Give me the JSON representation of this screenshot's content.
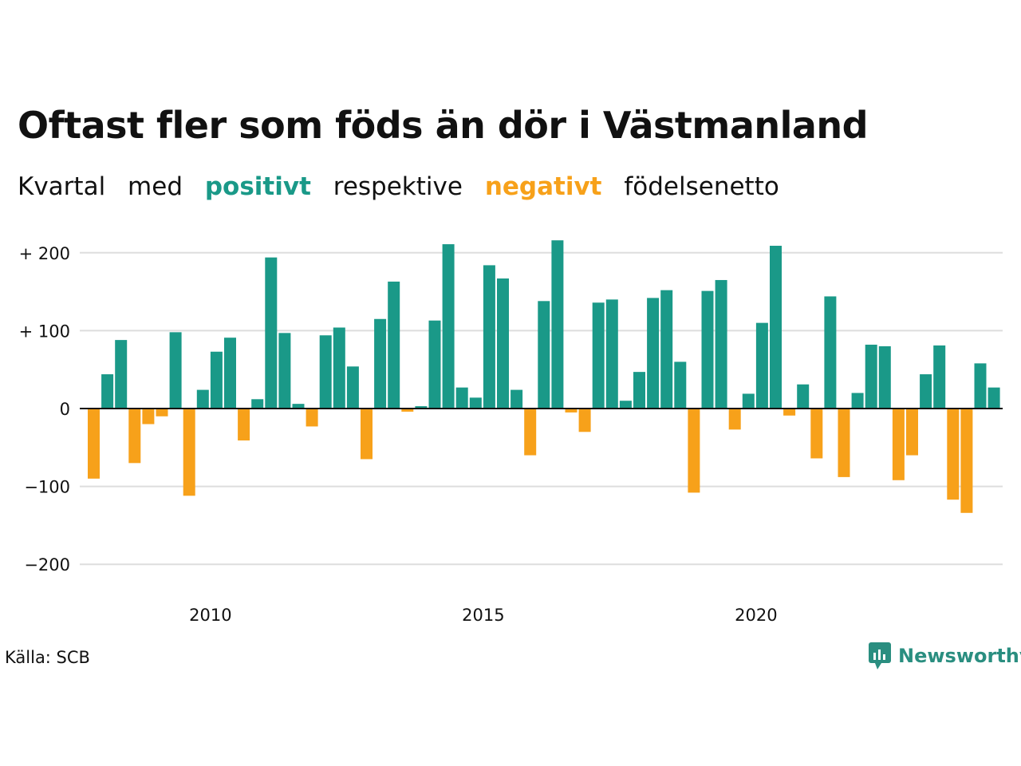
{
  "header": {
    "title": "Oftast fler som föds än dör i Västmanland",
    "subtitle": {
      "part1": "Kvartal",
      "part2": "med",
      "positive_word": "positivt",
      "part3": "respektive",
      "negative_word": "negativt",
      "part4": "födelsenetto"
    }
  },
  "footer": {
    "source": "Källa: SCB",
    "brand": "Newsworthy"
  },
  "colors": {
    "positive": "#1a9988",
    "negative": "#f7a11a",
    "grid": "#dddddd",
    "brand": "#2a8e80"
  },
  "chart_data": {
    "type": "bar",
    "title": "Oftast fler som föds än dör i Västmanland",
    "xlabel": "",
    "ylabel": "",
    "ylim": [
      -200,
      220
    ],
    "yticks": [
      {
        "value": 200,
        "label": "+ 200"
      },
      {
        "value": 100,
        "label": "+ 100"
      },
      {
        "value": 0,
        "label": "0"
      },
      {
        "value": -100,
        "label": "−100"
      },
      {
        "value": -200,
        "label": "−200"
      }
    ],
    "xticks": [
      {
        "value": 2010,
        "label": "2010"
      },
      {
        "value": 2015,
        "label": "2015"
      },
      {
        "value": 2020,
        "label": "2020"
      }
    ],
    "grid": true,
    "legend": "none",
    "start_year": 2007,
    "start_quarter": 1,
    "values": [
      -90,
      44,
      88,
      -70,
      -20,
      -10,
      98,
      -112,
      24,
      73,
      91,
      -41,
      12,
      194,
      97,
      6,
      -23,
      94,
      104,
      54,
      -65,
      115,
      163,
      -4,
      3,
      113,
      211,
      27,
      14,
      184,
      167,
      24,
      -60,
      138,
      216,
      -5,
      -30,
      136,
      140,
      10,
      47,
      142,
      152,
      60,
      -108,
      151,
      165,
      -27,
      19,
      110,
      209,
      -9,
      31,
      -64,
      144,
      -88,
      20,
      82,
      80,
      -92,
      -60,
      44,
      81,
      -117,
      -134,
      58,
      27
    ]
  }
}
